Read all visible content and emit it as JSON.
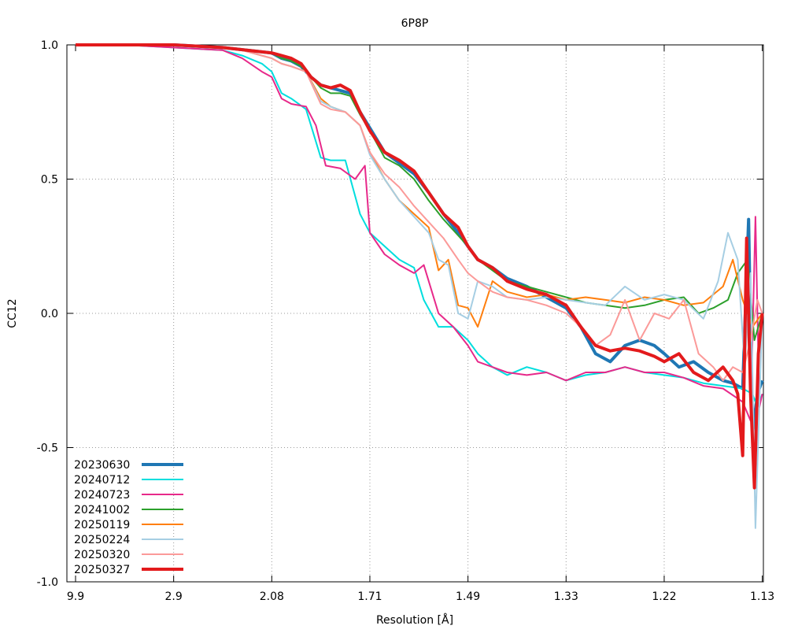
{
  "chart_data": {
    "type": "line",
    "title": "6P8P",
    "xlabel": "Resolution [Å]",
    "ylabel": "CC12",
    "x_tick_labels": [
      "9.9",
      "2.9",
      "2.08",
      "1.71",
      "1.49",
      "1.33",
      "1.22",
      "1.13"
    ],
    "x_tick_positions": [
      0,
      1,
      2,
      3,
      4,
      5,
      6,
      7
    ],
    "y_tick_labels": [
      "1.0",
      "0.5",
      "0.0",
      "-0.5",
      "-1.0"
    ],
    "y_tick_values": [
      1.0,
      0.5,
      0.0,
      -0.5,
      -1.0
    ],
    "ylim": [
      -1.0,
      1.0
    ],
    "xlim": [
      0,
      7
    ],
    "grid": true,
    "legend_position": "bottom-left",
    "series": [
      {
        "name": "20230630",
        "color": "#1f77b4",
        "thick": true,
        "x": [
          0,
          0.5,
          1,
          1.5,
          2,
          2.1,
          2.2,
          2.3,
          2.4,
          2.5,
          2.6,
          2.7,
          2.8,
          2.9,
          3.0,
          3.15,
          3.3,
          3.45,
          3.6,
          3.75,
          3.9,
          4.0,
          4.1,
          4.25,
          4.4,
          4.6,
          4.8,
          5.0,
          5.15,
          5.3,
          5.45,
          5.6,
          5.75,
          5.9,
          6.0,
          6.15,
          6.3,
          6.45,
          6.6,
          6.7,
          6.8,
          6.86,
          6.9,
          6.95,
          7.0
        ],
        "y": [
          1.0,
          1.0,
          1.0,
          0.99,
          0.97,
          0.95,
          0.94,
          0.92,
          0.88,
          0.85,
          0.84,
          0.83,
          0.82,
          0.75,
          0.69,
          0.6,
          0.56,
          0.52,
          0.45,
          0.37,
          0.3,
          0.25,
          0.2,
          0.17,
          0.13,
          0.1,
          0.06,
          0.02,
          -0.05,
          -0.15,
          -0.18,
          -0.12,
          -0.1,
          -0.12,
          -0.15,
          -0.2,
          -0.18,
          -0.22,
          -0.25,
          -0.26,
          -0.28,
          0.35,
          -0.45,
          -0.3,
          -0.25
        ]
      },
      {
        "name": "20240712",
        "color": "#00dede",
        "thick": false,
        "x": [
          0,
          0.5,
          1,
          1.5,
          1.7,
          1.9,
          2.0,
          2.1,
          2.2,
          2.35,
          2.5,
          2.6,
          2.75,
          2.9,
          3.0,
          3.15,
          3.3,
          3.45,
          3.55,
          3.7,
          3.85,
          4.0,
          4.1,
          4.25,
          4.4,
          4.6,
          4.8,
          5.0,
          5.2,
          5.4,
          5.6,
          5.8,
          6.0,
          6.2,
          6.4,
          6.6,
          6.8,
          6.9,
          6.95,
          7.0
        ],
        "y": [
          1.0,
          1.0,
          0.99,
          0.98,
          0.96,
          0.93,
          0.9,
          0.82,
          0.8,
          0.76,
          0.58,
          0.57,
          0.57,
          0.37,
          0.3,
          0.25,
          0.2,
          0.17,
          0.05,
          -0.05,
          -0.05,
          -0.1,
          -0.15,
          -0.2,
          -0.23,
          -0.2,
          -0.22,
          -0.25,
          -0.23,
          -0.22,
          -0.2,
          -0.22,
          -0.23,
          -0.24,
          -0.26,
          -0.27,
          -0.28,
          -0.3,
          -0.35,
          -0.3
        ]
      },
      {
        "name": "20240723",
        "color": "#e7298a",
        "thick": false,
        "x": [
          0,
          0.5,
          1,
          1.5,
          1.7,
          1.9,
          2.0,
          2.1,
          2.2,
          2.35,
          2.45,
          2.55,
          2.7,
          2.85,
          2.95,
          3.0,
          3.15,
          3.3,
          3.45,
          3.55,
          3.7,
          3.85,
          4.0,
          4.1,
          4.25,
          4.4,
          4.6,
          4.8,
          5.0,
          5.2,
          5.4,
          5.6,
          5.8,
          6.0,
          6.2,
          6.4,
          6.6,
          6.8,
          6.88,
          6.93,
          6.97,
          7.0
        ],
        "y": [
          1.0,
          1.0,
          0.99,
          0.98,
          0.95,
          0.9,
          0.88,
          0.8,
          0.78,
          0.77,
          0.7,
          0.55,
          0.54,
          0.5,
          0.55,
          0.3,
          0.22,
          0.18,
          0.15,
          0.18,
          0.0,
          -0.05,
          -0.12,
          -0.18,
          -0.2,
          -0.22,
          -0.23,
          -0.22,
          -0.25,
          -0.22,
          -0.22,
          -0.2,
          -0.22,
          -0.22,
          -0.24,
          -0.27,
          -0.28,
          -0.33,
          -0.4,
          0.36,
          -0.35,
          -0.3
        ]
      },
      {
        "name": "20241002",
        "color": "#2ca02c",
        "thick": false,
        "x": [
          0,
          0.5,
          1,
          1.5,
          2,
          2.1,
          2.2,
          2.3,
          2.4,
          2.5,
          2.6,
          2.7,
          2.8,
          2.9,
          3.0,
          3.15,
          3.3,
          3.45,
          3.6,
          3.75,
          3.9,
          4.0,
          4.1,
          4.25,
          4.4,
          4.6,
          4.8,
          5.0,
          5.2,
          5.4,
          5.6,
          5.8,
          6.0,
          6.2,
          6.35,
          6.5,
          6.65,
          6.75,
          6.85,
          6.92,
          7.0
        ],
        "y": [
          1.0,
          1.0,
          1.0,
          0.99,
          0.97,
          0.95,
          0.94,
          0.92,
          0.88,
          0.84,
          0.82,
          0.82,
          0.81,
          0.74,
          0.68,
          0.58,
          0.55,
          0.5,
          0.42,
          0.35,
          0.29,
          0.25,
          0.2,
          0.16,
          0.12,
          0.1,
          0.08,
          0.06,
          0.04,
          0.03,
          0.02,
          0.03,
          0.05,
          0.06,
          0.0,
          0.02,
          0.05,
          0.15,
          0.2,
          -0.1,
          0.0
        ]
      },
      {
        "name": "20250119",
        "color": "#ff7f0e",
        "thick": false,
        "x": [
          0,
          0.5,
          1,
          1.5,
          1.7,
          1.9,
          2.0,
          2.1,
          2.2,
          2.35,
          2.5,
          2.6,
          2.75,
          2.9,
          3.0,
          3.15,
          3.3,
          3.45,
          3.6,
          3.7,
          3.8,
          3.9,
          4.0,
          4.1,
          4.25,
          4.4,
          4.6,
          4.8,
          5.0,
          5.2,
          5.4,
          5.6,
          5.8,
          6.0,
          6.2,
          6.4,
          6.6,
          6.7,
          6.8,
          6.9,
          7.0
        ],
        "y": [
          1.0,
          1.0,
          1.0,
          0.99,
          0.98,
          0.96,
          0.95,
          0.93,
          0.92,
          0.9,
          0.8,
          0.77,
          0.75,
          0.7,
          0.6,
          0.5,
          0.42,
          0.37,
          0.32,
          0.16,
          0.2,
          0.03,
          0.02,
          -0.05,
          0.12,
          0.08,
          0.06,
          0.07,
          0.05,
          0.06,
          0.05,
          0.04,
          0.06,
          0.05,
          0.03,
          0.04,
          0.1,
          0.2,
          0.05,
          -0.05,
          0.0
        ]
      },
      {
        "name": "20250224",
        "color": "#a6cee3",
        "thick": false,
        "x": [
          0,
          0.5,
          1,
          1.5,
          1.7,
          1.9,
          2.0,
          2.1,
          2.2,
          2.35,
          2.5,
          2.6,
          2.75,
          2.9,
          3.0,
          3.15,
          3.3,
          3.45,
          3.6,
          3.7,
          3.8,
          3.9,
          4.0,
          4.1,
          4.25,
          4.4,
          4.6,
          4.8,
          5.0,
          5.2,
          5.4,
          5.6,
          5.8,
          6.0,
          6.2,
          6.4,
          6.55,
          6.65,
          6.75,
          6.82,
          6.88,
          6.93,
          7.0
        ],
        "y": [
          1.0,
          1.0,
          1.0,
          0.99,
          0.98,
          0.96,
          0.95,
          0.93,
          0.92,
          0.9,
          0.79,
          0.77,
          0.75,
          0.7,
          0.59,
          0.5,
          0.42,
          0.36,
          0.3,
          0.2,
          0.18,
          0.0,
          -0.02,
          0.12,
          0.1,
          0.06,
          0.05,
          0.06,
          0.05,
          0.04,
          0.03,
          0.1,
          0.05,
          0.07,
          0.05,
          -0.02,
          0.12,
          0.3,
          0.2,
          -0.2,
          0.15,
          -0.8,
          0.0
        ]
      },
      {
        "name": "20250320",
        "color": "#fb9a99",
        "thick": false,
        "x": [
          0,
          0.5,
          1,
          1.5,
          1.7,
          1.9,
          2.0,
          2.1,
          2.2,
          2.35,
          2.5,
          2.6,
          2.75,
          2.9,
          3.0,
          3.15,
          3.3,
          3.45,
          3.6,
          3.75,
          3.9,
          4.0,
          4.1,
          4.25,
          4.4,
          4.6,
          4.8,
          5.0,
          5.15,
          5.3,
          5.45,
          5.6,
          5.75,
          5.9,
          6.05,
          6.2,
          6.35,
          6.5,
          6.6,
          6.7,
          6.8,
          6.88,
          6.95,
          7.0
        ],
        "y": [
          1.0,
          1.0,
          1.0,
          0.99,
          0.98,
          0.96,
          0.95,
          0.93,
          0.92,
          0.9,
          0.78,
          0.76,
          0.75,
          0.7,
          0.6,
          0.52,
          0.47,
          0.4,
          0.34,
          0.28,
          0.2,
          0.15,
          0.12,
          0.08,
          0.06,
          0.05,
          0.03,
          0.0,
          -0.05,
          -0.12,
          -0.08,
          0.05,
          -0.1,
          0.0,
          -0.02,
          0.05,
          -0.15,
          -0.2,
          -0.25,
          -0.2,
          -0.22,
          -0.1,
          0.05,
          0.0
        ]
      },
      {
        "name": "20250327",
        "color": "#e31a1c",
        "thick": true,
        "x": [
          0,
          0.5,
          1,
          1.5,
          2,
          2.1,
          2.2,
          2.3,
          2.4,
          2.5,
          2.6,
          2.7,
          2.8,
          2.9,
          3.0,
          3.15,
          3.3,
          3.45,
          3.6,
          3.75,
          3.9,
          4.0,
          4.1,
          4.25,
          4.4,
          4.6,
          4.8,
          5.0,
          5.15,
          5.3,
          5.45,
          5.6,
          5.75,
          5.9,
          6.0,
          6.15,
          6.3,
          6.45,
          6.6,
          6.7,
          6.75,
          6.8,
          6.84,
          6.88,
          6.92,
          6.96,
          7.0
        ],
        "y": [
          1.0,
          1.0,
          1.0,
          0.99,
          0.97,
          0.96,
          0.95,
          0.93,
          0.88,
          0.85,
          0.84,
          0.85,
          0.83,
          0.75,
          0.68,
          0.6,
          0.57,
          0.53,
          0.45,
          0.37,
          0.32,
          0.25,
          0.2,
          0.17,
          0.12,
          0.09,
          0.07,
          0.03,
          -0.05,
          -0.12,
          -0.14,
          -0.13,
          -0.14,
          -0.16,
          -0.18,
          -0.15,
          -0.22,
          -0.25,
          -0.2,
          -0.25,
          -0.3,
          -0.53,
          0.28,
          -0.3,
          -0.65,
          -0.15,
          0.0
        ]
      }
    ]
  }
}
